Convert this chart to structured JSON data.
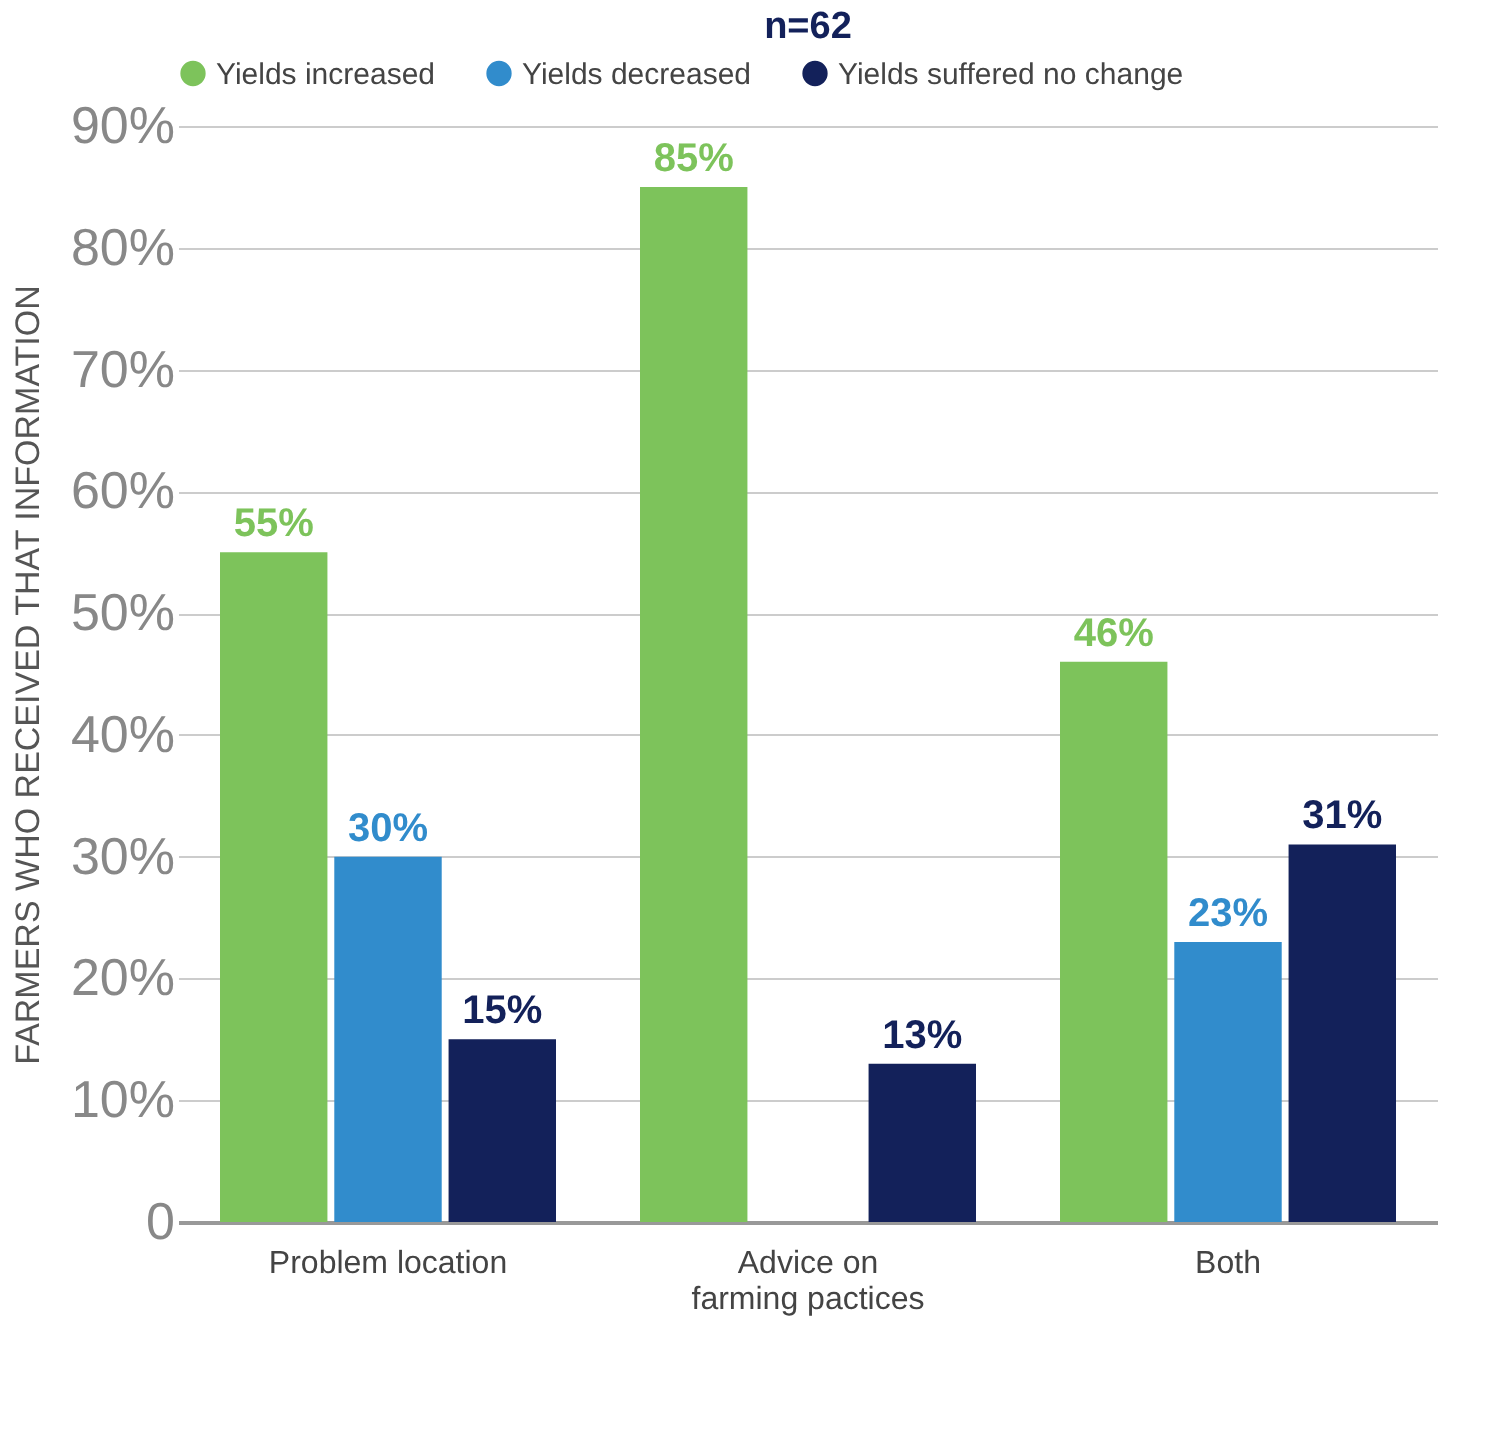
{
  "chart_data": {
    "type": "bar",
    "title": "n=62",
    "ylabel": "FARMERS WHO RECEIVED THAT INFORMATION",
    "categories": [
      "Problem location",
      "Advice on farming pactices",
      "Both"
    ],
    "series": [
      {
        "name": "Yields increased",
        "color": "#7dc35b",
        "values": [
          55,
          85,
          46
        ],
        "value_labels": [
          "55%",
          "85%",
          "46%"
        ]
      },
      {
        "name": "Yields decreased",
        "color": "#318ccc",
        "values": [
          30,
          null,
          23
        ],
        "value_labels": [
          "30%",
          null,
          "23%"
        ]
      },
      {
        "name": "Yields suffered no change",
        "color": "#13215a",
        "values": [
          15,
          13,
          31
        ],
        "value_labels": [
          "15%",
          "13%",
          "31%"
        ]
      }
    ],
    "ylim": [
      0,
      90
    ],
    "yticks": [
      0,
      {
        "value": 10,
        "label": "10%"
      },
      {
        "value": 20,
        "label": "20%"
      },
      {
        "value": 30,
        "label": "30%"
      },
      {
        "value": 40,
        "label": "40%"
      },
      {
        "value": 50,
        "label": "50%"
      },
      {
        "value": 60,
        "label": "60%"
      },
      {
        "value": 70,
        "label": "70%"
      },
      {
        "value": 80,
        "label": "80%"
      },
      {
        "value": 90,
        "label": "90%"
      }
    ],
    "grid": "y",
    "legend": "top"
  }
}
